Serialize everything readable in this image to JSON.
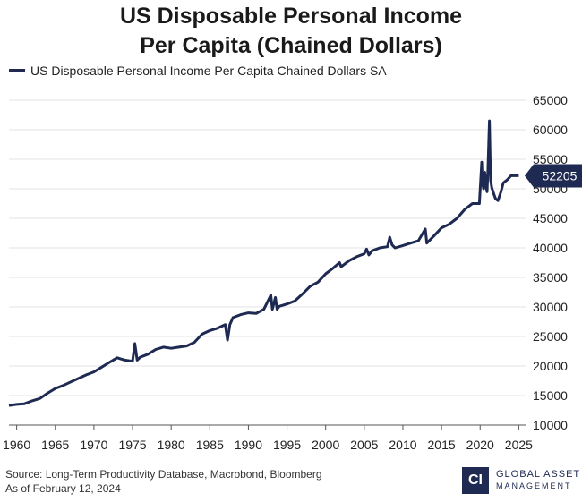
{
  "title": {
    "line1": "US Disposable Personal Income",
    "line2": "Per Capita (Chained Dollars)"
  },
  "footer": {
    "source": "Source: Long-Term Productivity Database, Macrobond, Bloomberg",
    "date": "As of February 12, 2024"
  },
  "logo": {
    "mark": "CI",
    "word1": "GLOBAL ASSET",
    "word2": "MANAGEMENT"
  },
  "colors": {
    "series": "#1e2a52",
    "grid": "#e3e3e3",
    "axis": "#555555"
  },
  "chart_data": {
    "type": "line",
    "title": "US Disposable Personal Income Per Capita (Chained Dollars)",
    "xlabel": "",
    "ylabel": "",
    "xlim": [
      1959,
      2026
    ],
    "ylim": [
      10000,
      65000
    ],
    "y_axis_position": "right",
    "grid": "horizontal",
    "legend_position": "top-left",
    "x_ticks": [
      1960,
      1965,
      1970,
      1975,
      1980,
      1985,
      1990,
      1995,
      2000,
      2005,
      2010,
      2015,
      2020,
      2025
    ],
    "y_ticks": [
      10000,
      15000,
      20000,
      25000,
      30000,
      35000,
      40000,
      45000,
      50000,
      55000,
      60000,
      65000
    ],
    "last_value_label": "52205",
    "series": [
      {
        "name": "US Disposable Personal Income Per Capita Chained Dollars SA",
        "x": [
          1959.0,
          1960.0,
          1961.0,
          1962.0,
          1963.0,
          1964.0,
          1965.0,
          1966.0,
          1967.0,
          1968.0,
          1969.0,
          1970.0,
          1971.0,
          1972.0,
          1973.0,
          1974.0,
          1975.0,
          1975.3,
          1975.6,
          1976.0,
          1977.0,
          1978.0,
          1979.0,
          1980.0,
          1981.0,
          1982.0,
          1983.0,
          1984.0,
          1985.0,
          1986.0,
          1987.0,
          1987.3,
          1987.6,
          1988.0,
          1989.0,
          1990.0,
          1991.0,
          1992.0,
          1992.9,
          1993.1,
          1993.5,
          1993.7,
          1994.0,
          1995.0,
          1996.0,
          1997.0,
          1998.0,
          1999.0,
          2000.0,
          2001.0,
          2001.8,
          2002.0,
          2003.0,
          2004.0,
          2005.0,
          2005.3,
          2005.6,
          2006.0,
          2007.0,
          2008.0,
          2008.3,
          2008.6,
          2009.0,
          2010.0,
          2011.0,
          2012.0,
          2012.9,
          2013.1,
          2014.0,
          2015.0,
          2016.0,
          2017.0,
          2018.0,
          2019.0,
          2019.9,
          2020.2,
          2020.3,
          2020.45,
          2020.6,
          2020.75,
          2020.9,
          2021.0,
          2021.2,
          2021.35,
          2021.5,
          2021.8,
          2022.0,
          2022.3,
          2022.7,
          2023.0,
          2023.5,
          2024.0,
          2024.5,
          2025.0
        ],
        "values": [
          13300,
          13500,
          13600,
          14100,
          14500,
          15400,
          16200,
          16700,
          17300,
          17900,
          18500,
          19000,
          19800,
          20600,
          21400,
          21000,
          20800,
          23800,
          21000,
          21500,
          22000,
          22800,
          23200,
          23000,
          23200,
          23400,
          24000,
          25400,
          26000,
          26400,
          27000,
          24400,
          27000,
          28200,
          28700,
          29000,
          28900,
          29600,
          32000,
          29600,
          31600,
          29600,
          30100,
          30500,
          31000,
          32200,
          33500,
          34200,
          35600,
          36600,
          37500,
          36800,
          37800,
          38500,
          39000,
          39800,
          38800,
          39500,
          40000,
          40200,
          41800,
          40500,
          40000,
          40400,
          40800,
          41200,
          43200,
          40800,
          42000,
          43400,
          44000,
          45000,
          46500,
          47500,
          47500,
          54500,
          51000,
          50000,
          52800,
          50500,
          49500,
          53000,
          61500,
          51500,
          50200,
          49000,
          48300,
          48000,
          49500,
          51000,
          51500,
          52205,
          52205,
          52205
        ]
      }
    ]
  }
}
